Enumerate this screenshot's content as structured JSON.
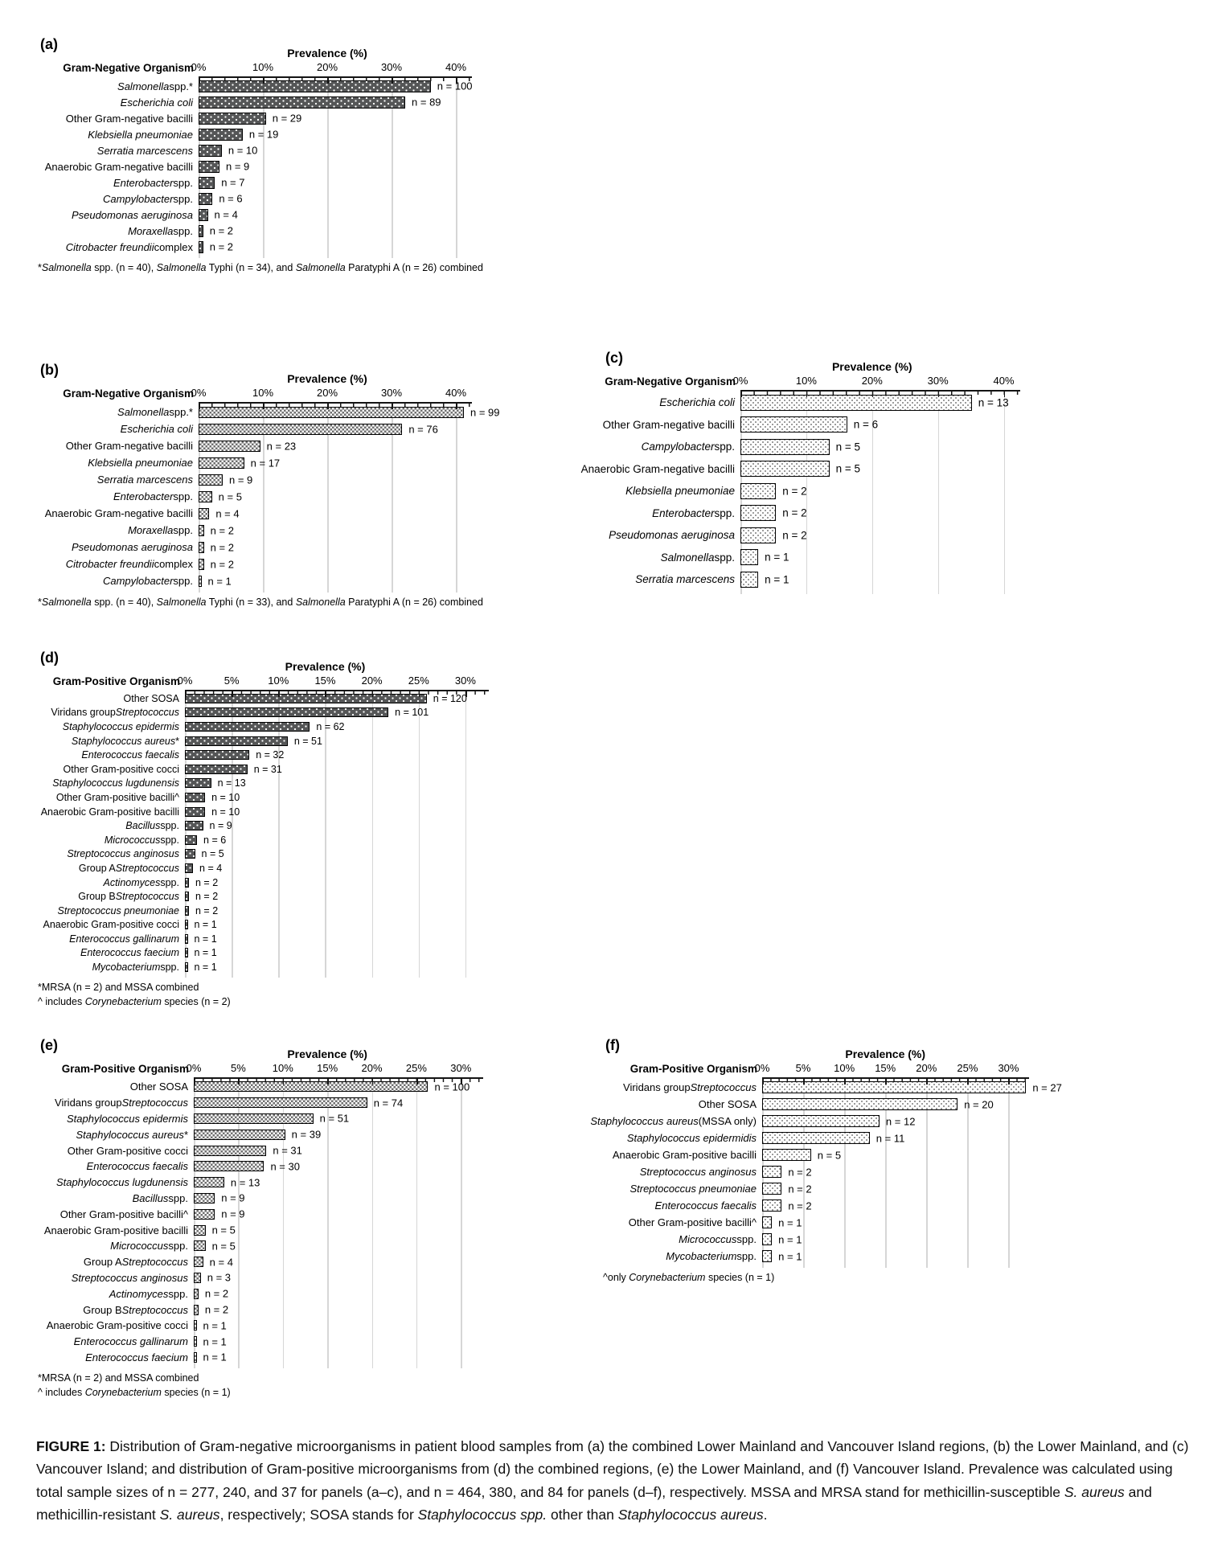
{
  "figure": {
    "caption_parts": [
      [
        "b",
        "FIGURE 1:"
      ],
      [
        "r",
        " Distribution of Gram-negative microorganisms in patient blood samples from (a) the combined Lower Mainland and Vancouver Island regions, (b) the Lower Mainland, and (c) Vancouver Island; and distribution of Gram-positive microorganisms from (d) the combined regions, (e) the Lower Mainland, and (f) Vancouver Island. Prevalence was calculated using total sample sizes of n = 277, 240, and 37 for panels (a–c), and n = 464, 380, and 84 for panels (d–f), respectively. MSSA and MRSA stand for methicillin-susceptible "
      ],
      [
        "i",
        "S. aureus"
      ],
      [
        "r",
        " and methicillin-resistant "
      ],
      [
        "i",
        "S. aureus"
      ],
      [
        "r",
        ", respectively; SOSA stands for "
      ],
      [
        "i",
        "Staphylococcus spp."
      ],
      [
        "r",
        " other than "
      ],
      [
        "i",
        "Staphylococcus aureus"
      ],
      [
        "r",
        "."
      ]
    ]
  },
  "chart_data": [
    {
      "panel": "a",
      "type": "bar",
      "orientation": "horizontal",
      "title": "Prevalence (%)",
      "y_axis_title": "Gram-Negative Organism",
      "x_ticks": [
        "0%",
        "10%",
        "20%",
        "30%",
        "40%"
      ],
      "x_range": [
        0,
        42.5
      ],
      "total_n": 277,
      "bar_style": "dark-dots",
      "value_label_prefix": "n = ",
      "categories": [
        "Salmonella spp.*",
        "Escherichia coli",
        "Other Gram-negative bacilli",
        "Klebsiella pneumoniae",
        "Serratia marcescens",
        "Anaerobic Gram-negative bacilli",
        "Enterobacter spp.",
        "Campylobacter spp.",
        "Pseudomonas aeruginosa",
        "Moraxella spp.",
        "Citrobacter freundii complex"
      ],
      "values": [
        100,
        89,
        29,
        19,
        10,
        9,
        7,
        6,
        4,
        2,
        2
      ],
      "label_parts": [
        [
          [
            "i",
            "Salmonella"
          ],
          [
            "r",
            " spp.*"
          ]
        ],
        [
          [
            "i",
            "Escherichia coli"
          ]
        ],
        [
          [
            "r",
            "Other Gram-negative bacilli"
          ]
        ],
        [
          [
            "i",
            "Klebsiella pneumoniae"
          ]
        ],
        [
          [
            "i",
            "Serratia marcescens"
          ]
        ],
        [
          [
            "r",
            "Anaerobic Gram-negative bacilli"
          ]
        ],
        [
          [
            "i",
            "Enterobacter"
          ],
          [
            "r",
            " spp."
          ]
        ],
        [
          [
            "i",
            "Campylobacter"
          ],
          [
            "r",
            " spp."
          ]
        ],
        [
          [
            "i",
            "Pseudomonas aeruginosa"
          ]
        ],
        [
          [
            "i",
            "Moraxella"
          ],
          [
            "r",
            " spp."
          ]
        ],
        [
          [
            "i",
            "Citrobacter freundii"
          ],
          [
            "r",
            " complex"
          ]
        ]
      ],
      "footnotes_parts": [
        [
          [
            "r",
            "*"
          ],
          [
            "i",
            "Salmonella"
          ],
          [
            "r",
            " spp. (n = 40), "
          ],
          [
            "i",
            "Salmonella"
          ],
          [
            "r",
            " Typhi (n = 34), and "
          ],
          [
            "i",
            "Salmonella"
          ],
          [
            "r",
            " Paratyphi A (n = 26) combined"
          ]
        ]
      ]
    },
    {
      "panel": "b",
      "type": "bar",
      "orientation": "horizontal",
      "title": "Prevalence (%)",
      "y_axis_title": "Gram-Negative Organism",
      "x_ticks": [
        "0%",
        "10%",
        "20%",
        "30%",
        "40%"
      ],
      "x_range": [
        0,
        42.5
      ],
      "total_n": 240,
      "bar_style": "checker",
      "value_label_prefix": "n = ",
      "categories": [
        "Salmonella spp.*",
        "Escherichia coli",
        "Other Gram-negative bacilli",
        "Klebsiella pneumoniae",
        "Serratia marcescens",
        "Enterobacter spp.",
        "Anaerobic Gram-negative bacilli",
        "Moraxella spp.",
        "Pseudomonas aeruginosa",
        "Citrobacter freundii complex",
        "Campylobacter spp."
      ],
      "values": [
        99,
        76,
        23,
        17,
        9,
        5,
        4,
        2,
        2,
        2,
        1
      ],
      "label_parts": [
        [
          [
            "i",
            "Salmonella"
          ],
          [
            "r",
            " spp.*"
          ]
        ],
        [
          [
            "i",
            "Escherichia coli"
          ]
        ],
        [
          [
            "r",
            "Other Gram-negative bacilli"
          ]
        ],
        [
          [
            "i",
            "Klebsiella pneumoniae"
          ]
        ],
        [
          [
            "i",
            "Serratia marcescens"
          ]
        ],
        [
          [
            "i",
            "Enterobacter"
          ],
          [
            "r",
            " spp."
          ]
        ],
        [
          [
            "r",
            "Anaerobic Gram-negative bacilli"
          ]
        ],
        [
          [
            "i",
            "Moraxella"
          ],
          [
            "r",
            " spp."
          ]
        ],
        [
          [
            "i",
            "Pseudomonas aeruginosa"
          ]
        ],
        [
          [
            "i",
            "Citrobacter freundii"
          ],
          [
            "r",
            " complex"
          ]
        ],
        [
          [
            "i",
            "Campylobacter"
          ],
          [
            "r",
            " spp."
          ]
        ]
      ],
      "footnotes_parts": [
        [
          [
            "r",
            "*"
          ],
          [
            "i",
            "Salmonella"
          ],
          [
            "r",
            " spp. (n = 40), "
          ],
          [
            "i",
            "Salmonella"
          ],
          [
            "r",
            " Typhi (n = 33), and "
          ],
          [
            "i",
            "Salmonella"
          ],
          [
            "r",
            " Paratyphi A (n = 26) combined"
          ]
        ]
      ]
    },
    {
      "panel": "c",
      "type": "bar",
      "orientation": "horizontal",
      "title": "Prevalence (%)",
      "y_axis_title": "Gram-Negative Organism",
      "x_ticks": [
        "0%",
        "10%",
        "20%",
        "30%",
        "40%"
      ],
      "x_range": [
        0,
        42.5
      ],
      "total_n": 37,
      "bar_style": "light-dots",
      "value_label_prefix": "n = ",
      "categories": [
        "Escherichia coli",
        "Other Gram-negative bacilli",
        "Campylobacter spp.",
        "Anaerobic Gram-negative bacilli",
        "Klebsiella pneumoniae",
        "Enterobacter spp.",
        "Pseudomonas aeruginosa",
        "Salmonella spp.",
        "Serratia marcescens"
      ],
      "values": [
        13,
        6,
        5,
        5,
        2,
        2,
        2,
        1,
        1
      ],
      "label_parts": [
        [
          [
            "i",
            "Escherichia coli"
          ]
        ],
        [
          [
            "r",
            "Other Gram-negative bacilli"
          ]
        ],
        [
          [
            "i",
            "Campylobacter"
          ],
          [
            "r",
            " spp."
          ]
        ],
        [
          [
            "r",
            "Anaerobic Gram-negative bacilli"
          ]
        ],
        [
          [
            "i",
            "Klebsiella pneumoniae"
          ]
        ],
        [
          [
            "i",
            "Enterobacter"
          ],
          [
            "r",
            " spp."
          ]
        ],
        [
          [
            "i",
            "Pseudomonas aeruginosa"
          ]
        ],
        [
          [
            "i",
            "Salmonella"
          ],
          [
            "r",
            " spp."
          ]
        ],
        [
          [
            "i",
            "Serratia marcescens"
          ]
        ]
      ],
      "footnotes_parts": []
    },
    {
      "panel": "d",
      "type": "bar",
      "orientation": "horizontal",
      "title": "Prevalence (%)",
      "y_axis_title": "Gram-Positive Organism",
      "x_ticks": [
        "0%",
        "5%",
        "10%",
        "15%",
        "20%",
        "25%",
        "30%"
      ],
      "x_range": [
        0,
        32.5
      ],
      "total_n": 464,
      "bar_style": "dark-dots",
      "value_label_prefix": "n = ",
      "categories": [
        "Other SOSA",
        "Viridans group Streptococcus",
        "Staphylococcus epidermis",
        "Staphylococcus aureus*",
        "Enterococcus faecalis",
        "Other Gram-positive cocci",
        "Staphylococcus lugdunensis",
        "Other Gram-positive bacilli^",
        "Anaerobic Gram-positive bacilli",
        "Bacillus spp.",
        "Micrococcus spp.",
        "Streptococcus anginosus",
        "Group A Streptococcus",
        "Actinomyces spp.",
        "Group B Streptococcus",
        "Streptococcus pneumoniae",
        "Anaerobic Gram-positive cocci",
        "Enterococcus gallinarum",
        "Enterococcus faecium",
        "Mycobacterium spp."
      ],
      "values": [
        120,
        101,
        62,
        51,
        32,
        31,
        13,
        10,
        10,
        9,
        6,
        5,
        4,
        2,
        2,
        2,
        1,
        1,
        1,
        1
      ],
      "label_parts": [
        [
          [
            "r",
            "Other SOSA"
          ]
        ],
        [
          [
            "r",
            "Viridans group "
          ],
          [
            "i",
            "Streptococcus"
          ]
        ],
        [
          [
            "i",
            "Staphylococcus epidermis"
          ]
        ],
        [
          [
            "i",
            "Staphylococcus aureus"
          ],
          [
            "r",
            "*"
          ]
        ],
        [
          [
            "i",
            "Enterococcus faecalis"
          ]
        ],
        [
          [
            "r",
            "Other Gram-positive cocci"
          ]
        ],
        [
          [
            "i",
            "Staphylococcus lugdunensis"
          ]
        ],
        [
          [
            "r",
            "Other Gram-positive bacilli^"
          ]
        ],
        [
          [
            "r",
            "Anaerobic Gram-positive bacilli"
          ]
        ],
        [
          [
            "i",
            "Bacillus"
          ],
          [
            "r",
            " spp."
          ]
        ],
        [
          [
            "i",
            "Micrococcus"
          ],
          [
            "r",
            " spp."
          ]
        ],
        [
          [
            "i",
            "Streptococcus anginosus"
          ]
        ],
        [
          [
            "r",
            "Group A "
          ],
          [
            "i",
            "Streptococcus"
          ]
        ],
        [
          [
            "i",
            "Actinomyces"
          ],
          [
            "r",
            " spp."
          ]
        ],
        [
          [
            "r",
            "Group B "
          ],
          [
            "i",
            "Streptococcus"
          ]
        ],
        [
          [
            "i",
            "Streptococcus pneumoniae"
          ]
        ],
        [
          [
            "r",
            "Anaerobic Gram-positive cocci"
          ]
        ],
        [
          [
            "i",
            "Enterococcus gallinarum"
          ]
        ],
        [
          [
            "i",
            "Enterococcus faecium"
          ]
        ],
        [
          [
            "i",
            "Mycobacterium"
          ],
          [
            "r",
            " spp."
          ]
        ]
      ],
      "footnotes_parts": [
        [
          [
            "r",
            "*MRSA (n = 2) and MSSA combined"
          ]
        ],
        [
          [
            "r",
            "^ includes "
          ],
          [
            "i",
            "Corynebacterium"
          ],
          [
            "r",
            " species (n = 2)"
          ]
        ]
      ]
    },
    {
      "panel": "e",
      "type": "bar",
      "orientation": "horizontal",
      "title": "Prevalence (%)",
      "y_axis_title": "Gram-Positive Organism",
      "x_ticks": [
        "0%",
        "5%",
        "10%",
        "15%",
        "20%",
        "25%",
        "30%"
      ],
      "x_range": [
        0,
        32.5
      ],
      "total_n": 380,
      "bar_style": "checker",
      "value_label_prefix": "n = ",
      "categories": [
        "Other SOSA",
        "Viridans group Streptococcus",
        "Staphylococcus epidermis",
        "Staphylococcus aureus*",
        "Other Gram-positive cocci",
        "Enterococcus faecalis",
        "Staphylococcus lugdunensis",
        "Bacillus spp.",
        "Other Gram-positive bacilli^",
        "Anaerobic Gram-positive bacilli",
        "Micrococcus spp.",
        "Group A Streptococcus",
        "Streptococcus anginosus",
        "Actinomyces spp.",
        "Group B Streptococcus",
        "Anaerobic Gram-positive cocci",
        "Enterococcus gallinarum",
        "Enterococcus faecium"
      ],
      "values": [
        100,
        74,
        51,
        39,
        31,
        30,
        13,
        9,
        9,
        5,
        5,
        4,
        3,
        2,
        2,
        1,
        1,
        1
      ],
      "label_parts": [
        [
          [
            "r",
            "Other SOSA"
          ]
        ],
        [
          [
            "r",
            "Viridans group "
          ],
          [
            "i",
            "Streptococcus"
          ]
        ],
        [
          [
            "i",
            "Staphylococcus epidermis"
          ]
        ],
        [
          [
            "i",
            "Staphylococcus aureus"
          ],
          [
            "r",
            "*"
          ]
        ],
        [
          [
            "r",
            "Other Gram-positive cocci"
          ]
        ],
        [
          [
            "i",
            "Enterococcus faecalis"
          ]
        ],
        [
          [
            "i",
            "Staphylococcus lugdunensis"
          ]
        ],
        [
          [
            "i",
            "Bacillus"
          ],
          [
            "r",
            " spp."
          ]
        ],
        [
          [
            "r",
            "Other Gram-positive bacilli^"
          ]
        ],
        [
          [
            "r",
            "Anaerobic Gram-positive bacilli"
          ]
        ],
        [
          [
            "i",
            "Micrococcus"
          ],
          [
            "r",
            " spp."
          ]
        ],
        [
          [
            "r",
            "Group A "
          ],
          [
            "i",
            "Streptococcus"
          ]
        ],
        [
          [
            "i",
            "Streptococcus anginosus"
          ]
        ],
        [
          [
            "i",
            "Actinomyces"
          ],
          [
            "r",
            " spp."
          ]
        ],
        [
          [
            "r",
            "Group B "
          ],
          [
            "i",
            "Streptococcus"
          ]
        ],
        [
          [
            "r",
            "Anaerobic Gram-positive cocci"
          ]
        ],
        [
          [
            "i",
            "Enterococcus gallinarum"
          ]
        ],
        [
          [
            "i",
            "Enterococcus faecium"
          ]
        ]
      ],
      "footnotes_parts": [
        [
          [
            "r",
            "*MRSA (n = 2) and MSSA combined"
          ]
        ],
        [
          [
            "r",
            "^ includes "
          ],
          [
            "i",
            "Corynebacterium"
          ],
          [
            "r",
            " species (n = 1)"
          ]
        ]
      ]
    },
    {
      "panel": "f",
      "type": "bar",
      "orientation": "horizontal",
      "title": "Prevalence (%)",
      "y_axis_title": "Gram-Positive Organism",
      "x_ticks": [
        "0%",
        "5%",
        "10%",
        "15%",
        "20%",
        "25%",
        "30%"
      ],
      "x_range": [
        0,
        32.5
      ],
      "total_n": 84,
      "bar_style": "light-dots",
      "value_label_prefix": "n = ",
      "categories": [
        "Viridans group Streptococcus",
        "Other SOSA",
        "Staphylococcus aureus (MSSA only)",
        "Staphylococcus epidermidis",
        "Anaerobic Gram-positive bacilli",
        "Streptococcus anginosus",
        "Streptococcus pneumoniae",
        "Enterococcus faecalis",
        "Other Gram-positive bacilli^",
        "Micrococcus spp.",
        "Mycobacterium spp."
      ],
      "values": [
        27,
        20,
        12,
        11,
        5,
        2,
        2,
        2,
        1,
        1,
        1
      ],
      "label_parts": [
        [
          [
            "r",
            "Viridans group "
          ],
          [
            "i",
            "Streptococcus"
          ]
        ],
        [
          [
            "r",
            "Other SOSA"
          ]
        ],
        [
          [
            "i",
            "Staphylococcus aureus"
          ],
          [
            "r",
            " (MSSA only)"
          ]
        ],
        [
          [
            "i",
            "Staphylococcus epidermidis"
          ]
        ],
        [
          [
            "r",
            "Anaerobic Gram-positive bacilli"
          ]
        ],
        [
          [
            "i",
            "Streptococcus anginosus"
          ]
        ],
        [
          [
            "i",
            "Streptococcus pneumoniae"
          ]
        ],
        [
          [
            "i",
            "Enterococcus faecalis"
          ]
        ],
        [
          [
            "r",
            "Other Gram-positive bacilli^"
          ]
        ],
        [
          [
            "i",
            "Micrococcus"
          ],
          [
            "r",
            " spp."
          ]
        ],
        [
          [
            "i",
            "Mycobacterium"
          ],
          [
            "r",
            " spp."
          ]
        ]
      ],
      "footnotes_parts": [
        [
          [
            "r",
            "^only "
          ],
          [
            "i",
            "Corynebacterium"
          ],
          [
            "r",
            " species (n = 1)"
          ]
        ]
      ]
    }
  ]
}
